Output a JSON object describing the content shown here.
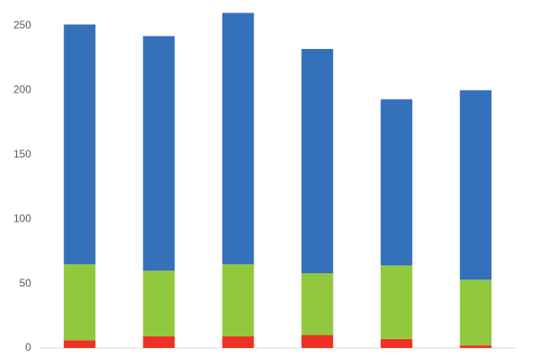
{
  "chart_data": {
    "type": "stacked_bar",
    "categories": [
      null,
      null,
      null,
      null,
      null,
      null
    ],
    "series": [
      {
        "color": "#ee3124",
        "values": [
          6,
          9,
          9,
          10,
          7,
          2
        ]
      },
      {
        "color": "#92c83e",
        "values": [
          59,
          51,
          56,
          48,
          57,
          51
        ]
      },
      {
        "color": "#3570bb",
        "values": [
          186,
          182,
          195,
          174,
          129,
          147
        ]
      }
    ],
    "ylim": [
      0,
      270
    ],
    "yticks": [
      0,
      50,
      100,
      150,
      200,
      250
    ]
  }
}
